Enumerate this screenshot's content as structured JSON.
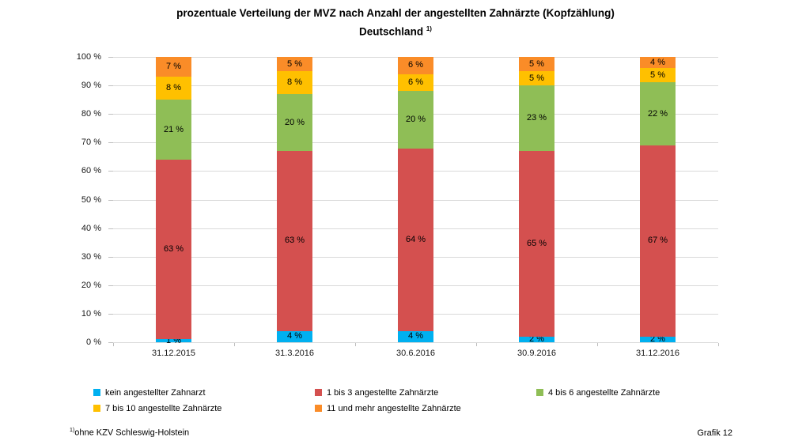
{
  "title": {
    "line1": "prozentuale Verteilung der MVZ nach Anzahl der angestellten Zahnärzte (Kopfzählung)",
    "line2": "Deutschland",
    "footnote_marker": "1)"
  },
  "chart_data": {
    "type": "bar",
    "stacked": true,
    "title": "prozentuale Verteilung der MVZ nach Anzahl der angestellten Zahnärzte (Kopfzählung) Deutschland 1)",
    "categories": [
      "31.12.2015",
      "31.3.2016",
      "30.6.2016",
      "30.9.2016",
      "31.12.2016"
    ],
    "series": [
      {
        "name": "kein angestellter Zahnarzt",
        "color": "#00B0F0",
        "values": [
          1,
          4,
          4,
          2,
          2
        ]
      },
      {
        "name": "1 bis 3 angestellte Zahnärzte",
        "color": "#D4504F",
        "values": [
          63,
          63,
          64,
          65,
          67
        ]
      },
      {
        "name": "4 bis 6 angestellte Zahnärzte",
        "color": "#8FBE56",
        "values": [
          21,
          20,
          20,
          23,
          22
        ]
      },
      {
        "name": "7 bis 10 angestellte Zahnärzte",
        "color": "#FFC000",
        "values": [
          8,
          8,
          6,
          5,
          5
        ]
      },
      {
        "name": "11 und mehr angestellte Zahnärzte",
        "color": "#FA8C28",
        "values": [
          7,
          5,
          6,
          5,
          4
        ]
      }
    ],
    "yticks": [
      0,
      10,
      20,
      30,
      40,
      50,
      60,
      70,
      80,
      90,
      100
    ],
    "ylim": [
      0,
      100
    ],
    "ytick_suffix": " %",
    "value_label_suffix": " %",
    "grid": true,
    "legend_position": "bottom",
    "legend_rows": [
      [
        0,
        1,
        2
      ],
      [
        3,
        4
      ]
    ]
  },
  "footnote": {
    "marker": "1)",
    "text": "ohne KZV Schleswig-Holstein"
  },
  "caption": "Grafik 12"
}
